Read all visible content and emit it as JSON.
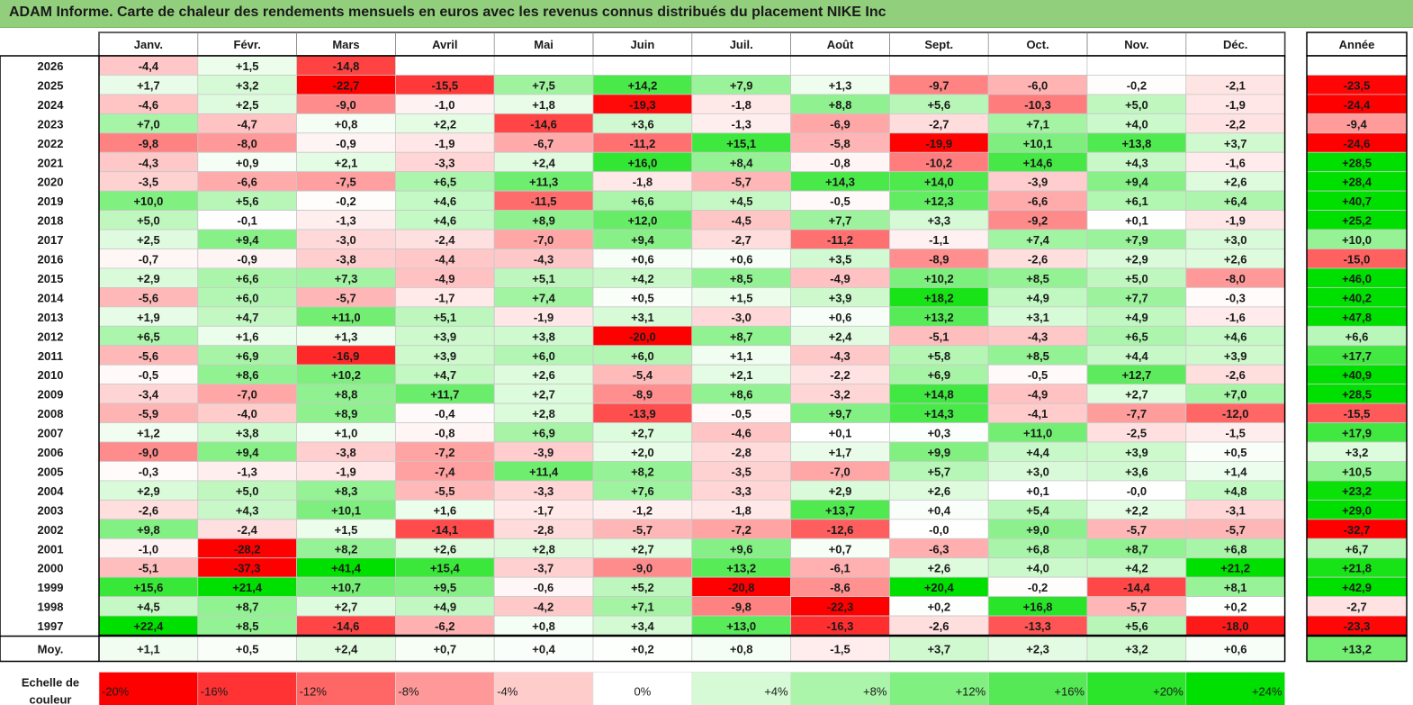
{
  "title": "ADAM Informe. Carte de chaleur des rendements mensuels en euros avec les revenus connus distribués du placement NIKE Inc",
  "chart_data": {
    "type": "heatmap",
    "title": "ADAM Informe. Carte de chaleur des rendements mensuels en euros avec les revenus connus distribués du placement NIKE Inc",
    "months": [
      "Janv.",
      "Févr.",
      "Mars",
      "Avril",
      "Mai",
      "Juin",
      "Juil.",
      "Août",
      "Sept.",
      "Oct.",
      "Nov.",
      "Déc."
    ],
    "year_header": "Année",
    "rows": [
      {
        "year": "2026",
        "values": [
          "-4,4",
          "+1,5",
          "-14,8",
          "",
          "",
          "",
          "",
          "",
          "",
          "",
          "",
          ""
        ],
        "annual": ""
      },
      {
        "year": "2025",
        "values": [
          "+1,7",
          "+3,2",
          "-22,7",
          "-15,5",
          "+7,5",
          "+14,2",
          "+7,9",
          "+1,3",
          "-9,7",
          "-6,0",
          "-0,2",
          "-2,1"
        ],
        "annual": "-23,5"
      },
      {
        "year": "2024",
        "values": [
          "-4,6",
          "+2,5",
          "-9,0",
          "-1,0",
          "+1,8",
          "-19,3",
          "-1,8",
          "+8,8",
          "+5,6",
          "-10,3",
          "+5,0",
          "-1,9"
        ],
        "annual": "-24,4"
      },
      {
        "year": "2023",
        "values": [
          "+7,0",
          "-4,7",
          "+0,8",
          "+2,2",
          "-14,6",
          "+3,6",
          "-1,3",
          "-6,9",
          "-2,7",
          "+7,1",
          "+4,0",
          "-2,2"
        ],
        "annual": "-9,4"
      },
      {
        "year": "2022",
        "values": [
          "-9,8",
          "-8,0",
          "-0,9",
          "-1,9",
          "-6,7",
          "-11,2",
          "+15,1",
          "-5,8",
          "-19,9",
          "+10,1",
          "+13,8",
          "+3,7"
        ],
        "annual": "-24,6"
      },
      {
        "year": "2021",
        "values": [
          "-4,3",
          "+0,9",
          "+2,1",
          "-3,3",
          "+2,4",
          "+16,0",
          "+8,4",
          "-0,8",
          "-10,2",
          "+14,6",
          "+4,3",
          "-1,6"
        ],
        "annual": "+28,5"
      },
      {
        "year": "2020",
        "values": [
          "-3,5",
          "-6,6",
          "-7,5",
          "+6,5",
          "+11,3",
          "-1,8",
          "-5,7",
          "+14,3",
          "+14,0",
          "-3,9",
          "+9,4",
          "+2,6"
        ],
        "annual": "+28,4"
      },
      {
        "year": "2019",
        "values": [
          "+10,0",
          "+5,6",
          "-0,2",
          "+4,6",
          "-11,5",
          "+6,6",
          "+4,5",
          "-0,5",
          "+12,3",
          "-6,6",
          "+6,1",
          "+6,4"
        ],
        "annual": "+40,7"
      },
      {
        "year": "2018",
        "values": [
          "+5,0",
          "-0,1",
          "-1,3",
          "+4,6",
          "+8,9",
          "+12,0",
          "-4,5",
          "+7,7",
          "+3,3",
          "-9,2",
          "+0,1",
          "-1,9"
        ],
        "annual": "+25,2"
      },
      {
        "year": "2017",
        "values": [
          "+2,5",
          "+9,4",
          "-3,0",
          "-2,4",
          "-7,0",
          "+9,4",
          "-2,7",
          "-11,2",
          "-1,1",
          "+7,4",
          "+7,9",
          "+3,0"
        ],
        "annual": "+10,0"
      },
      {
        "year": "2016",
        "values": [
          "-0,7",
          "-0,9",
          "-3,8",
          "-4,4",
          "-4,3",
          "+0,6",
          "+0,6",
          "+3,5",
          "-8,9",
          "-2,6",
          "+2,9",
          "+2,6"
        ],
        "annual": "-15,0"
      },
      {
        "year": "2015",
        "values": [
          "+2,9",
          "+6,6",
          "+7,3",
          "-4,9",
          "+5,1",
          "+4,2",
          "+8,5",
          "-4,9",
          "+10,2",
          "+8,5",
          "+5,0",
          "-8,0"
        ],
        "annual": "+46,0"
      },
      {
        "year": "2014",
        "values": [
          "-5,6",
          "+6,0",
          "-5,7",
          "-1,7",
          "+7,4",
          "+0,5",
          "+1,5",
          "+3,9",
          "+18,2",
          "+4,9",
          "+7,7",
          "-0,3"
        ],
        "annual": "+40,2"
      },
      {
        "year": "2013",
        "values": [
          "+1,9",
          "+4,7",
          "+11,0",
          "+5,1",
          "-1,9",
          "+3,1",
          "-3,0",
          "+0,6",
          "+13,2",
          "+3,1",
          "+4,9",
          "-1,6"
        ],
        "annual": "+47,8"
      },
      {
        "year": "2012",
        "values": [
          "+6,5",
          "+1,6",
          "+1,3",
          "+3,9",
          "+3,8",
          "-20,0",
          "+8,7",
          "+2,4",
          "-5,1",
          "-4,3",
          "+6,5",
          "+4,6"
        ],
        "annual": "+6,6"
      },
      {
        "year": "2011",
        "values": [
          "-5,6",
          "+6,9",
          "-16,9",
          "+3,9",
          "+6,0",
          "+6,0",
          "+1,1",
          "-4,3",
          "+5,8",
          "+8,5",
          "+4,4",
          "+3,9"
        ],
        "annual": "+17,7"
      },
      {
        "year": "2010",
        "values": [
          "-0,5",
          "+8,6",
          "+10,2",
          "+4,7",
          "+2,6",
          "-5,4",
          "+2,1",
          "-2,2",
          "+6,9",
          "-0,5",
          "+12,7",
          "-2,6"
        ],
        "annual": "+40,9"
      },
      {
        "year": "2009",
        "values": [
          "-3,4",
          "-7,0",
          "+8,8",
          "+11,7",
          "+2,7",
          "-8,9",
          "+8,6",
          "-3,2",
          "+14,8",
          "-4,9",
          "+2,7",
          "+7,0"
        ],
        "annual": "+28,5"
      },
      {
        "year": "2008",
        "values": [
          "-5,9",
          "-4,0",
          "+8,9",
          "-0,4",
          "+2,8",
          "-13,9",
          "-0,5",
          "+9,7",
          "+14,3",
          "-4,1",
          "-7,7",
          "-12,0"
        ],
        "annual": "-15,5"
      },
      {
        "year": "2007",
        "values": [
          "+1,2",
          "+3,8",
          "+1,0",
          "-0,8",
          "+6,9",
          "+2,7",
          "-4,6",
          "+0,1",
          "+0,3",
          "+11,0",
          "-2,5",
          "-1,5"
        ],
        "annual": "+17,9"
      },
      {
        "year": "2006",
        "values": [
          "-9,0",
          "+9,4",
          "-3,8",
          "-7,2",
          "-3,9",
          "+2,0",
          "-2,8",
          "+1,7",
          "+9,9",
          "+4,4",
          "+3,9",
          "+0,5"
        ],
        "annual": "+3,2"
      },
      {
        "year": "2005",
        "values": [
          "-0,3",
          "-1,3",
          "-1,9",
          "-7,4",
          "+11,4",
          "+8,2",
          "-3,5",
          "-7,0",
          "+5,7",
          "+3,0",
          "+3,6",
          "+1,4"
        ],
        "annual": "+10,5"
      },
      {
        "year": "2004",
        "values": [
          "+2,9",
          "+5,0",
          "+8,3",
          "-5,5",
          "-3,3",
          "+7,6",
          "-3,3",
          "+2,9",
          "+2,6",
          "+0,1",
          "-0,0",
          "+4,8"
        ],
        "annual": "+23,2"
      },
      {
        "year": "2003",
        "values": [
          "-2,6",
          "+4,3",
          "+10,1",
          "+1,6",
          "-1,7",
          "-1,2",
          "-1,8",
          "+13,7",
          "+0,4",
          "+5,4",
          "+2,2",
          "-3,1"
        ],
        "annual": "+29,0"
      },
      {
        "year": "2002",
        "values": [
          "+9,8",
          "-2,4",
          "+1,5",
          "-14,1",
          "-2,8",
          "-5,7",
          "-7,2",
          "-12,6",
          "-0,0",
          "+9,0",
          "-5,7",
          "-5,7"
        ],
        "annual": "-32,7"
      },
      {
        "year": "2001",
        "values": [
          "-1,0",
          "-28,2",
          "+8,2",
          "+2,6",
          "+2,8",
          "+2,7",
          "+9,6",
          "+0,7",
          "-6,3",
          "+6,8",
          "+8,7",
          "+6,8"
        ],
        "annual": "+6,7"
      },
      {
        "year": "2000",
        "values": [
          "-5,1",
          "-37,3",
          "+41,4",
          "+15,4",
          "-3,7",
          "-9,0",
          "+13,2",
          "-6,1",
          "+2,6",
          "+4,0",
          "+4,2",
          "+21,2"
        ],
        "annual": "+21,8"
      },
      {
        "year": "1999",
        "values": [
          "+15,6",
          "+21,4",
          "+10,7",
          "+9,5",
          "-0,6",
          "+5,2",
          "-20,8",
          "-8,6",
          "+20,4",
          "-0,2",
          "-14,4",
          "+8,1"
        ],
        "annual": "+42,9"
      },
      {
        "year": "1998",
        "values": [
          "+4,5",
          "+8,7",
          "+2,7",
          "+4,9",
          "-4,2",
          "+7,1",
          "-9,8",
          "-22,3",
          "+0,2",
          "+16,8",
          "-5,7",
          "+0,2"
        ],
        "annual": "-2,7"
      },
      {
        "year": "1997",
        "values": [
          "+22,4",
          "+8,5",
          "-14,6",
          "-6,2",
          "+0,8",
          "+3,4",
          "+13,0",
          "-16,3",
          "-2,6",
          "-13,3",
          "+5,6",
          "-18,0"
        ],
        "annual": "-23,3"
      }
    ],
    "average": {
      "label": "Moy.",
      "values": [
        "+1,1",
        "+0,5",
        "+2,4",
        "+0,7",
        "+0,4",
        "+0,2",
        "+0,8",
        "-1,5",
        "+3,7",
        "+2,3",
        "+3,2",
        "+0,6"
      ],
      "annual": "+13,2"
    },
    "scale": {
      "label_line1": "Echelle de",
      "label_line2": "couleur",
      "steps": [
        "-20%",
        "-16%",
        "-12%",
        "-8%",
        "-4%",
        "0%",
        "+4%",
        "+8%",
        "+12%",
        "+16%",
        "+20%",
        "+24%"
      ],
      "step_values": [
        -20,
        -16,
        -12,
        -8,
        -4,
        0,
        4,
        8,
        12,
        16,
        20,
        24
      ]
    },
    "colors": {
      "neg": "#ff0000",
      "pos": "#00e000",
      "neutral": "#ffffff"
    }
  }
}
